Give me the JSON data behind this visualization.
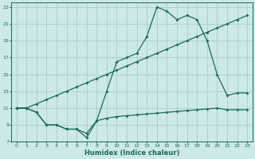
{
  "xlabel": "Humidex (Indice chaleur)",
  "bg_color": "#cce8e8",
  "grid_color": "#aacccc",
  "line_color": "#1a6b5a",
  "xlim": [
    -0.5,
    23.5
  ],
  "ylim": [
    7,
    23.5
  ],
  "xticks": [
    0,
    1,
    2,
    3,
    4,
    5,
    6,
    7,
    8,
    9,
    10,
    11,
    12,
    13,
    14,
    15,
    16,
    17,
    18,
    19,
    20,
    21,
    22,
    23
  ],
  "yticks": [
    7,
    9,
    11,
    13,
    15,
    17,
    19,
    21,
    23
  ],
  "line1_x": [
    0,
    1,
    2,
    3,
    4,
    5,
    6,
    7,
    8,
    9,
    10,
    11,
    12,
    13,
    14,
    15,
    16,
    17,
    18,
    19,
    20,
    21,
    22,
    23
  ],
  "line1_y": [
    11,
    11,
    10.5,
    9,
    9,
    8.5,
    8.5,
    8.0,
    9.5,
    9.8,
    10.0,
    10.1,
    10.2,
    10.3,
    10.4,
    10.5,
    10.6,
    10.7,
    10.8,
    10.9,
    11.0,
    10.8,
    10.8,
    10.8
  ],
  "line2_x": [
    0,
    1,
    2,
    3,
    4,
    5,
    6,
    7,
    8,
    9,
    10,
    11,
    12,
    13,
    14,
    15,
    16,
    17,
    18,
    19,
    20,
    21,
    22,
    23
  ],
  "line2_y": [
    11.0,
    11.0,
    11.5,
    12.0,
    12.5,
    13.0,
    13.5,
    14.0,
    14.5,
    15.0,
    15.5,
    16.0,
    16.5,
    17.0,
    17.5,
    18.0,
    18.5,
    19.0,
    19.5,
    20.0,
    20.5,
    21.0,
    21.5,
    22.0
  ],
  "line3_x": [
    0,
    1,
    2,
    3,
    4,
    5,
    6,
    7,
    8,
    9,
    10,
    11,
    12,
    13,
    14,
    15,
    16,
    17,
    18,
    19,
    20,
    21,
    22,
    23
  ],
  "line3_y": [
    11,
    11,
    10.5,
    9,
    9,
    8.5,
    8.5,
    7.5,
    9.5,
    13.0,
    16.5,
    17.0,
    17.5,
    19.5,
    23.0,
    22.5,
    21.5,
    22.0,
    21.5,
    19.0,
    15.0,
    12.5,
    12.8,
    12.8
  ]
}
